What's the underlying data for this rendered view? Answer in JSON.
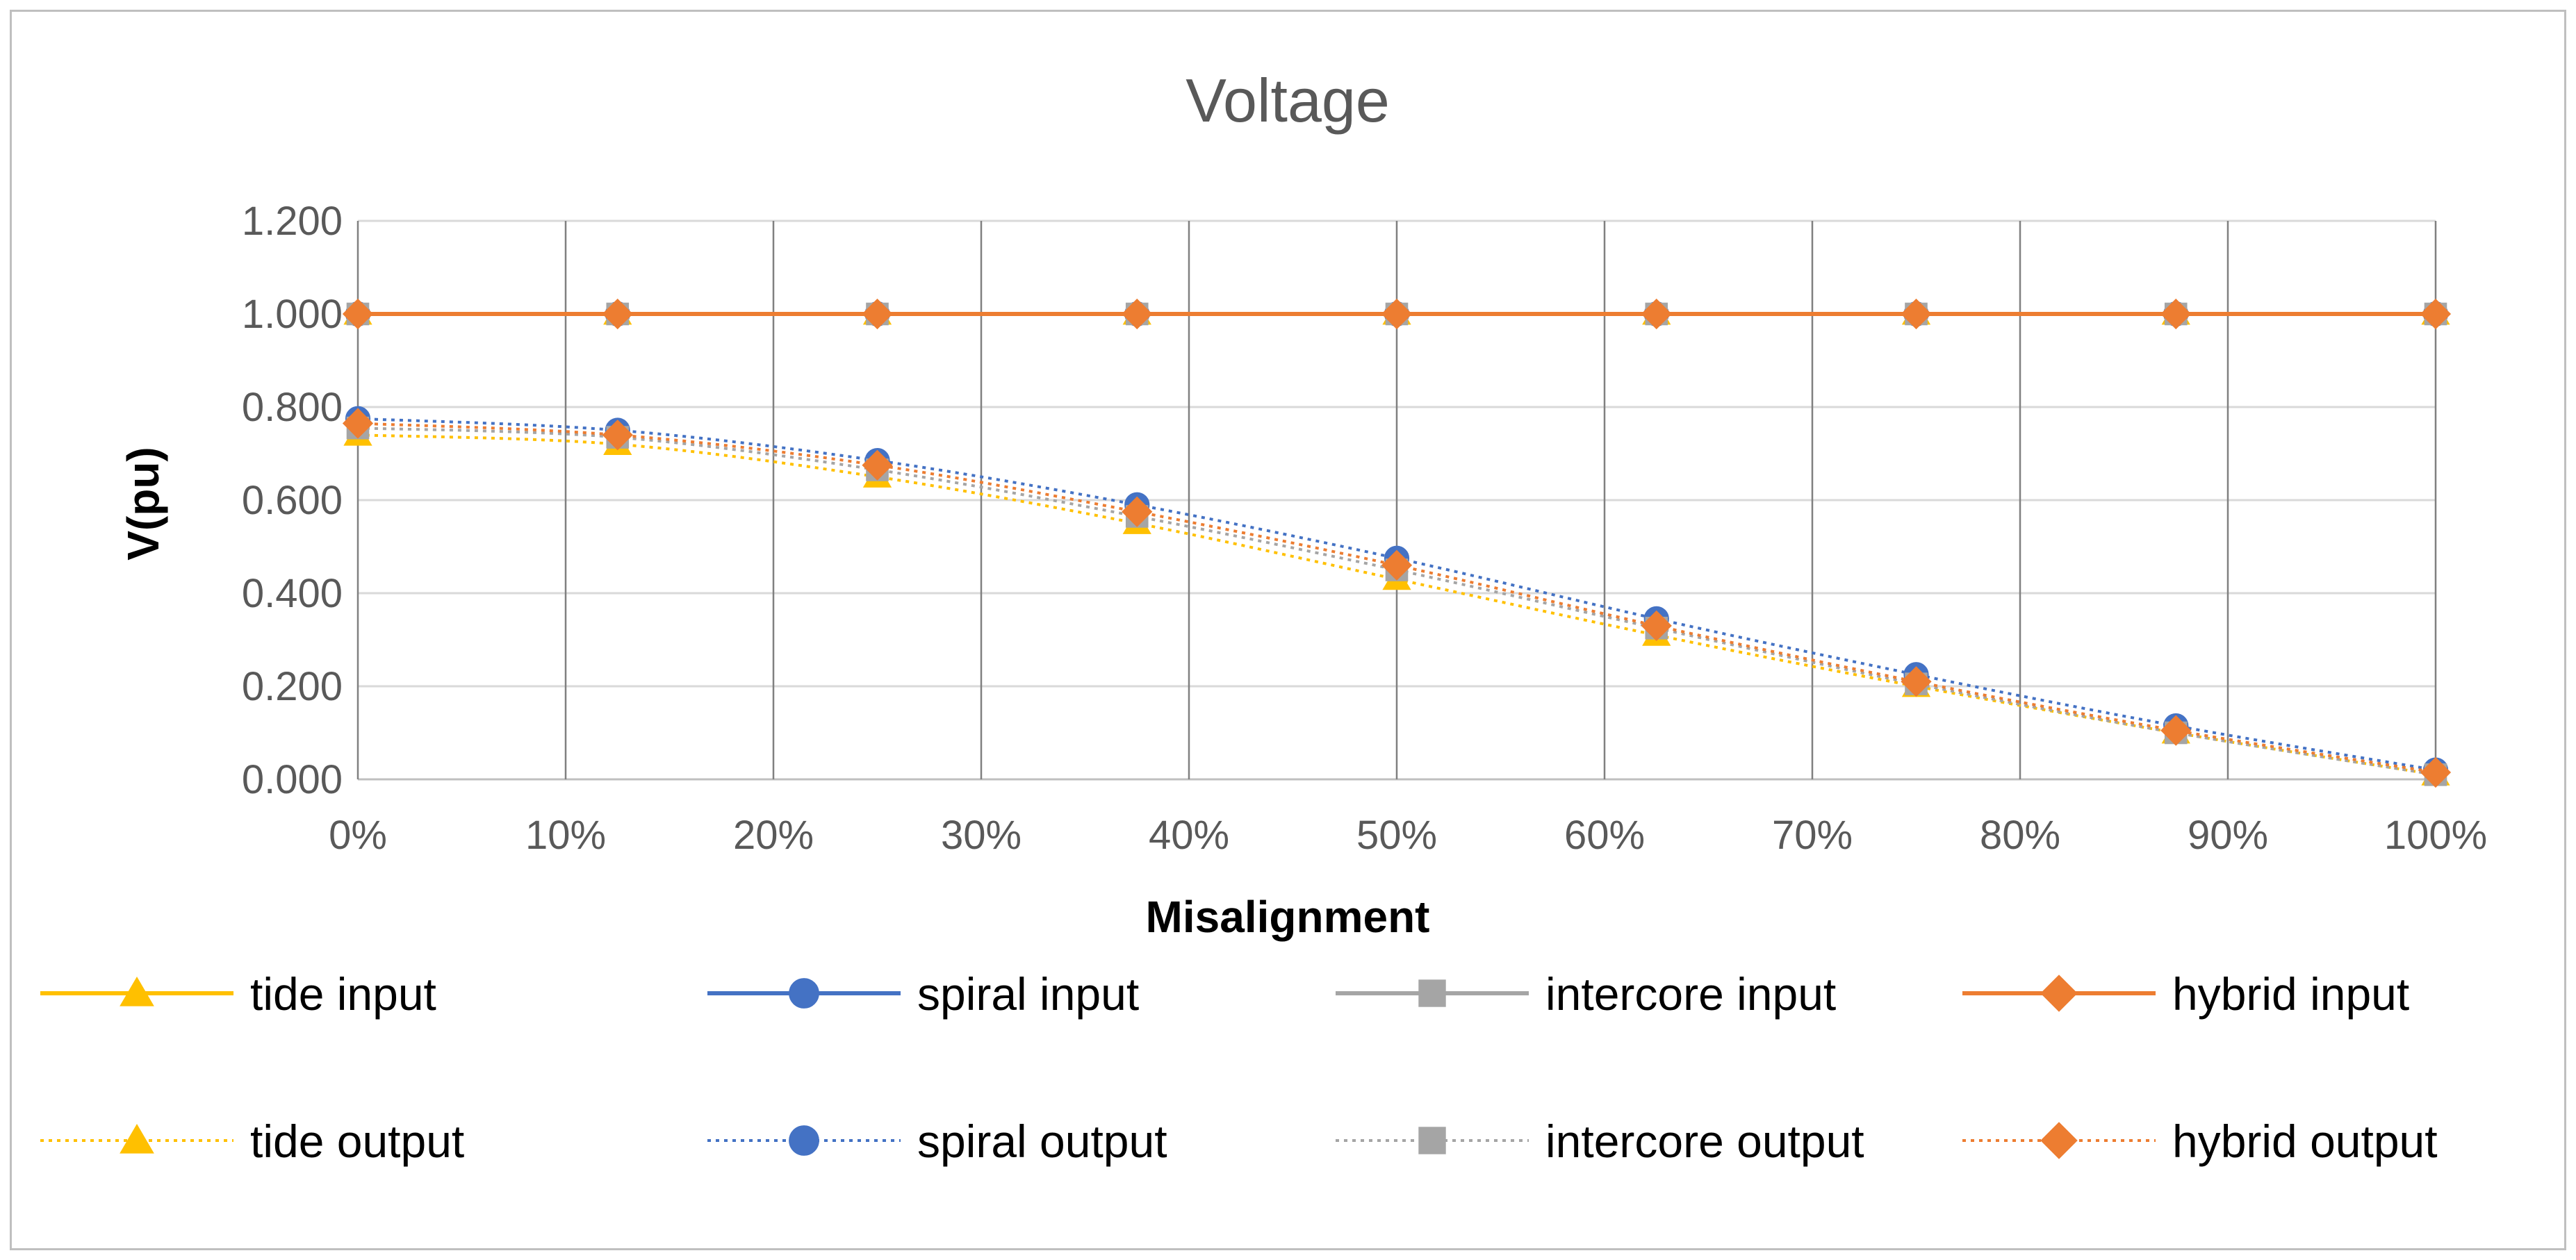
{
  "chart_data": {
    "type": "line",
    "title": "Voltage",
    "xlabel": "Misalignment",
    "ylabel": "V(pu)",
    "xlim": [
      0,
      100
    ],
    "ylim": [
      0,
      1.2
    ],
    "x_ticks": [
      "0%",
      "10%",
      "20%",
      "30%",
      "40%",
      "50%",
      "60%",
      "70%",
      "80%",
      "90%",
      "100%"
    ],
    "y_ticks": [
      "0.000",
      "0.200",
      "0.400",
      "0.600",
      "0.800",
      "1.000",
      "1.200"
    ],
    "grid": true,
    "legend_position": "bottom",
    "x": [
      0,
      12.5,
      25,
      37.5,
      50,
      62.5,
      75,
      87.5,
      100
    ],
    "series": [
      {
        "name": "tide input",
        "color": "#FFC000",
        "marker": "triangle",
        "style": "solid",
        "values": [
          1.0,
          1.0,
          1.0,
          1.0,
          1.0,
          1.0,
          1.0,
          1.0,
          1.0
        ]
      },
      {
        "name": "spiral input",
        "color": "#4472C4",
        "marker": "circle",
        "style": "solid",
        "values": [
          1.0,
          1.0,
          1.0,
          1.0,
          1.0,
          1.0,
          1.0,
          1.0,
          1.0
        ]
      },
      {
        "name": "intercore input",
        "color": "#A5A5A5",
        "marker": "square",
        "style": "solid",
        "values": [
          1.0,
          1.0,
          1.0,
          1.0,
          1.0,
          1.0,
          1.0,
          1.0,
          1.0
        ]
      },
      {
        "name": "hybrid input",
        "color": "#ED7D31",
        "marker": "diamond",
        "style": "solid",
        "values": [
          1.0,
          1.0,
          1.0,
          1.0,
          1.0,
          1.0,
          1.0,
          1.0,
          1.0
        ]
      },
      {
        "name": "tide output",
        "color": "#FFC000",
        "marker": "triangle",
        "style": "dotted",
        "values": [
          0.74,
          0.72,
          0.65,
          0.55,
          0.43,
          0.31,
          0.2,
          0.1,
          0.01
        ]
      },
      {
        "name": "spiral output",
        "color": "#4472C4",
        "marker": "circle",
        "style": "dotted",
        "values": [
          0.775,
          0.75,
          0.685,
          0.59,
          0.475,
          0.345,
          0.225,
          0.115,
          0.02
        ]
      },
      {
        "name": "intercore output",
        "color": "#A5A5A5",
        "marker": "square",
        "style": "dotted",
        "values": [
          0.755,
          0.735,
          0.665,
          0.565,
          0.45,
          0.325,
          0.205,
          0.1,
          0.01
        ]
      },
      {
        "name": "hybrid output",
        "color": "#ED7D31",
        "marker": "diamond",
        "style": "dotted",
        "values": [
          0.765,
          0.74,
          0.675,
          0.575,
          0.46,
          0.33,
          0.21,
          0.105,
          0.015
        ]
      }
    ]
  }
}
